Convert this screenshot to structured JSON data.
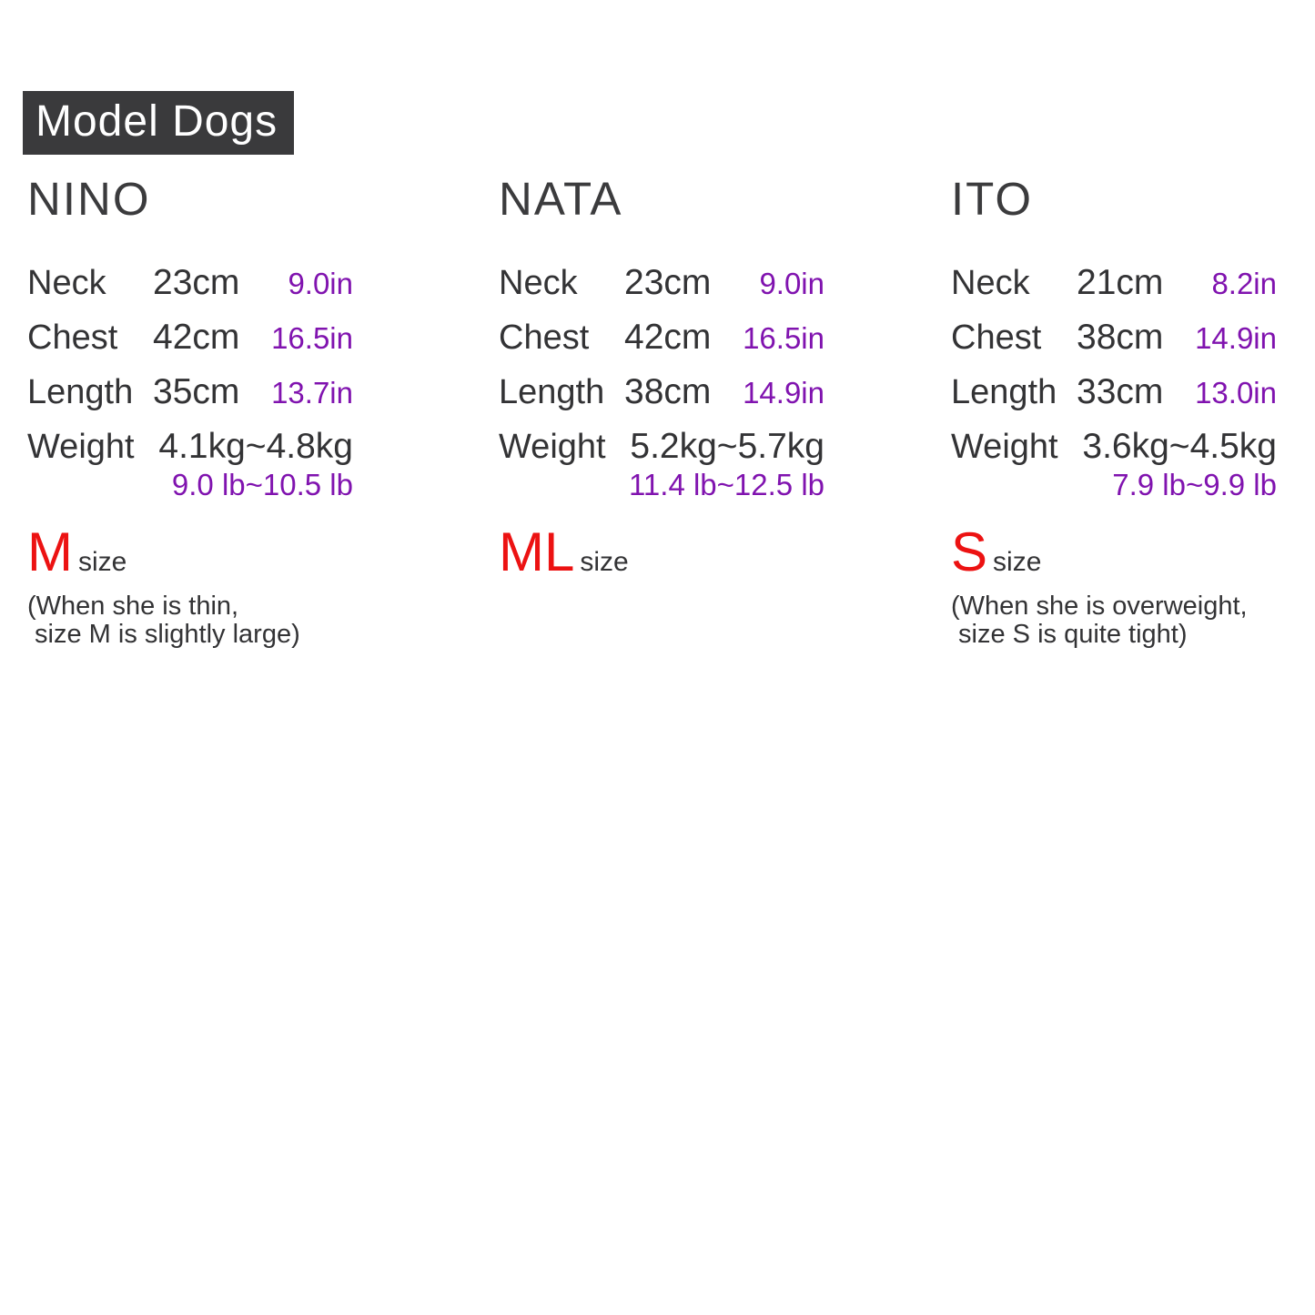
{
  "header": {
    "title": "Model Dogs"
  },
  "colors": {
    "header_bg": "#3a3a3c",
    "text_dark": "#333335",
    "accent_purple": "#8013af",
    "accent_red": "#ec1212"
  },
  "dogs": [
    {
      "name": "NINO",
      "rows": [
        {
          "label": "Neck",
          "cm": "23cm",
          "in": "9.0in"
        },
        {
          "label": "Chest",
          "cm": "42cm",
          "in": "16.5in"
        },
        {
          "label": "Length",
          "cm": "35cm",
          "in": "13.7in"
        }
      ],
      "weight_label": "Weight",
      "weight_kg": "4.1kg~4.8kg",
      "weight_lb": "9.0 lb~10.5 lb",
      "size": "M",
      "size_suffix": "size",
      "note_line1": "(When she is thin,",
      "note_line2": " size M is slightly large)"
    },
    {
      "name": "NATA",
      "rows": [
        {
          "label": "Neck",
          "cm": "23cm",
          "in": "9.0in"
        },
        {
          "label": "Chest",
          "cm": "42cm",
          "in": "16.5in"
        },
        {
          "label": "Length",
          "cm": "38cm",
          "in": "14.9in"
        }
      ],
      "weight_label": "Weight",
      "weight_kg": "5.2kg~5.7kg",
      "weight_lb": "11.4 lb~12.5 lb",
      "size": "ML",
      "size_suffix": "size"
    },
    {
      "name": "ITO",
      "rows": [
        {
          "label": "Neck",
          "cm": "21cm",
          "in": "8.2in"
        },
        {
          "label": "Chest",
          "cm": "38cm",
          "in": "14.9in"
        },
        {
          "label": "Length",
          "cm": "33cm",
          "in": "13.0in"
        }
      ],
      "weight_label": "Weight",
      "weight_kg": "3.6kg~4.5kg",
      "weight_lb": "7.9 lb~9.9 lb",
      "size": "S",
      "size_suffix": "size",
      "note_line1": "(When she is overweight,",
      "note_line2": " size S is quite tight)"
    }
  ]
}
